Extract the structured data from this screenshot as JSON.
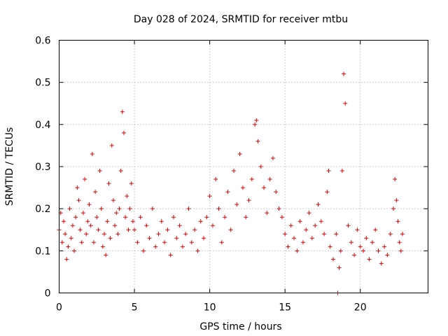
{
  "chart_data": {
    "type": "scatter",
    "title": "Day 028 of 2024, SRMTID for receiver mtbu",
    "xlabel": "GPS time / hours",
    "ylabel": "SRMTID / TECUs",
    "xlim": [
      0,
      24.5
    ],
    "ylim": [
      0,
      0.6
    ],
    "xticks": [
      0,
      5,
      10,
      15,
      20
    ],
    "xtick_labels": [
      "0",
      "5",
      "10",
      "15",
      "20"
    ],
    "yticks": [
      0,
      0.1,
      0.2,
      0.3,
      0.4,
      0.5,
      0.6
    ],
    "ytick_labels": [
      "0",
      "0.1",
      "0.2",
      "0.3",
      "0.4",
      "0.5",
      "0.6"
    ],
    "grid": true,
    "series": [
      {
        "name": "SRMTID",
        "color": "#e00000",
        "marker": "plus",
        "x": [
          0.0,
          0.1,
          0.2,
          0.3,
          0.4,
          0.5,
          0.6,
          0.7,
          0.8,
          0.9,
          1.0,
          1.1,
          1.2,
          1.3,
          1.4,
          1.5,
          1.6,
          1.7,
          1.8,
          1.9,
          2.0,
          2.1,
          2.2,
          2.3,
          2.4,
          2.5,
          2.6,
          2.7,
          2.8,
          2.9,
          3.0,
          3.1,
          3.2,
          3.3,
          3.4,
          3.5,
          3.6,
          3.7,
          3.8,
          3.9,
          4.0,
          4.1,
          4.2,
          4.3,
          4.4,
          4.5,
          4.6,
          4.7,
          4.8,
          4.9,
          5.0,
          5.2,
          5.4,
          5.6,
          5.8,
          6.0,
          6.2,
          6.4,
          6.6,
          6.8,
          7.0,
          7.2,
          7.4,
          7.6,
          7.8,
          8.0,
          8.2,
          8.4,
          8.6,
          8.8,
          9.0,
          9.2,
          9.4,
          9.6,
          9.8,
          10.0,
          10.2,
          10.4,
          10.6,
          10.8,
          11.0,
          11.2,
          11.4,
          11.6,
          11.8,
          12.0,
          12.2,
          12.4,
          12.6,
          12.8,
          13.0,
          13.1,
          13.2,
          13.4,
          13.6,
          13.8,
          14.0,
          14.2,
          14.4,
          14.6,
          14.8,
          15.0,
          15.2,
          15.4,
          15.6,
          15.8,
          16.0,
          16.2,
          16.4,
          16.6,
          16.8,
          17.0,
          17.2,
          17.4,
          17.6,
          17.8,
          17.9,
          18.0,
          18.2,
          18.4,
          18.5,
          18.6,
          18.7,
          18.8,
          18.9,
          19.0,
          19.2,
          19.4,
          19.6,
          19.8,
          20.0,
          20.2,
          20.4,
          20.6,
          20.8,
          21.0,
          21.2,
          21.4,
          21.6,
          21.8,
          22.0,
          22.2,
          22.3,
          22.4,
          22.5,
          22.6,
          22.7,
          22.8
        ],
        "y": [
          0.15,
          0.19,
          0.12,
          0.17,
          0.14,
          0.08,
          0.11,
          0.2,
          0.13,
          0.16,
          0.1,
          0.18,
          0.25,
          0.22,
          0.15,
          0.12,
          0.19,
          0.27,
          0.14,
          0.17,
          0.21,
          0.16,
          0.33,
          0.12,
          0.24,
          0.18,
          0.15,
          0.29,
          0.2,
          0.11,
          0.14,
          0.09,
          0.17,
          0.26,
          0.13,
          0.35,
          0.22,
          0.16,
          0.19,
          0.14,
          0.2,
          0.29,
          0.43,
          0.38,
          0.18,
          0.23,
          0.15,
          0.2,
          0.26,
          0.17,
          0.15,
          0.12,
          0.18,
          0.1,
          0.16,
          0.13,
          0.2,
          0.11,
          0.14,
          0.17,
          0.12,
          0.15,
          0.09,
          0.18,
          0.13,
          0.16,
          0.11,
          0.14,
          0.2,
          0.12,
          0.15,
          0.1,
          0.17,
          0.13,
          0.18,
          0.23,
          0.16,
          0.27,
          0.2,
          0.12,
          0.18,
          0.24,
          0.15,
          0.29,
          0.21,
          0.33,
          0.25,
          0.18,
          0.22,
          0.27,
          0.4,
          0.41,
          0.36,
          0.3,
          0.25,
          0.19,
          0.27,
          0.32,
          0.24,
          0.2,
          0.18,
          0.14,
          0.11,
          0.16,
          0.13,
          0.1,
          0.17,
          0.12,
          0.15,
          0.19,
          0.13,
          0.16,
          0.21,
          0.17,
          0.14,
          0.24,
          0.29,
          0.11,
          0.08,
          0.14,
          0.0,
          0.06,
          0.1,
          0.29,
          0.52,
          0.45,
          0.16,
          0.12,
          0.09,
          0.15,
          0.11,
          0.1,
          0.13,
          0.08,
          0.12,
          0.15,
          0.1,
          0.07,
          0.11,
          0.09,
          0.14,
          0.2,
          0.27,
          0.22,
          0.17,
          0.12,
          0.1,
          0.14
        ]
      }
    ]
  }
}
